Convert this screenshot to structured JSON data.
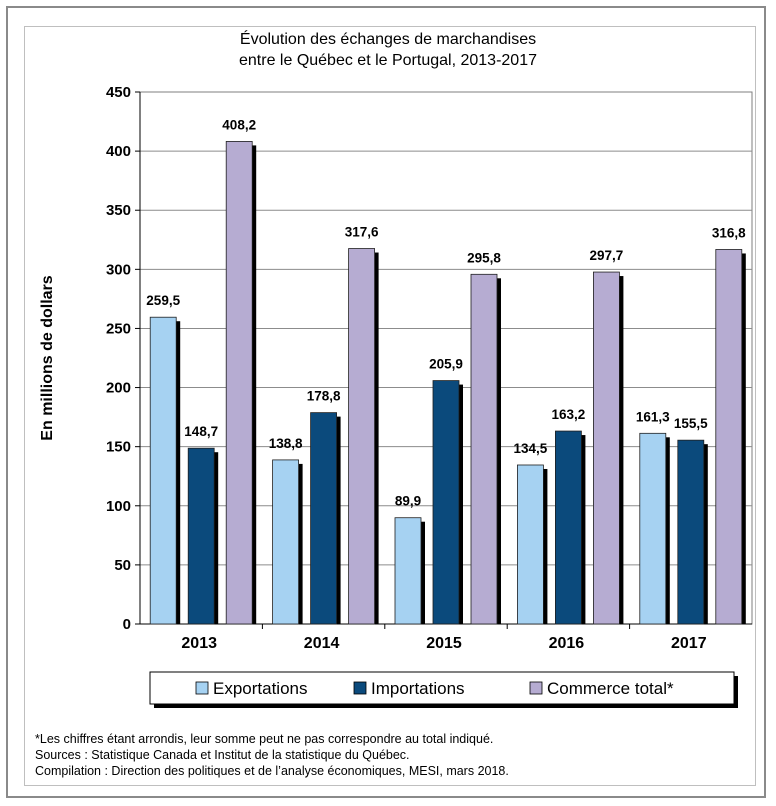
{
  "chart_data": {
    "type": "bar",
    "title": [
      "Évolution des échanges de marchandises",
      "entre le Québec et le Portugal, 2013-2017"
    ],
    "ylabel": "En millions de dollars",
    "xlabel": "",
    "categories": [
      "2013",
      "2014",
      "2015",
      "2016",
      "2017"
    ],
    "ylim": [
      0,
      450
    ],
    "yticks": [
      0,
      50,
      100,
      150,
      200,
      250,
      300,
      350,
      400,
      450
    ],
    "grid": true,
    "legend_position": "bottom",
    "series": [
      {
        "name": "Exportations",
        "color": "#a6d2f2",
        "values": [
          259.5,
          138.8,
          89.9,
          134.5,
          161.3
        ],
        "labels": [
          "259,5",
          "138,8",
          "89,9",
          "134,5",
          "161,3"
        ]
      },
      {
        "name": "Importations",
        "color": "#0b4a7c",
        "values": [
          148.7,
          178.8,
          205.9,
          163.2,
          155.5
        ],
        "labels": [
          "148,7",
          "178,8",
          "205,9",
          "163,2",
          "155,5"
        ]
      },
      {
        "name": "Commerce total*",
        "color": "#b6acd2",
        "values": [
          408.2,
          317.6,
          295.8,
          297.7,
          316.8
        ],
        "labels": [
          "408,2",
          "317,6",
          "295,8",
          "297,7",
          "316,8"
        ]
      }
    ]
  },
  "notes": {
    "footnote": "*Les chiffres étant arrondis, leur somme peut ne pas correspondre au total indiqué.",
    "sources": "Sources : Statistique Canada et Institut de la statistique du Québec.",
    "compilation": "Compilation : Direction des politiques et de l’analyse économiques, MESI, mars 2018."
  }
}
